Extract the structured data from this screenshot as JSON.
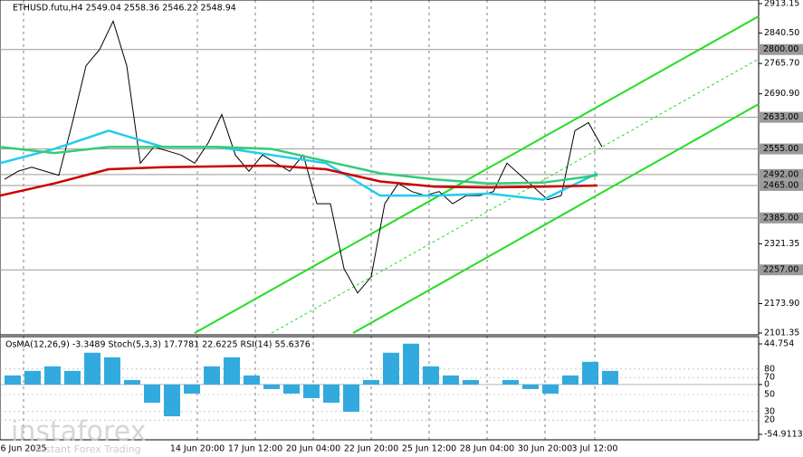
{
  "header": {
    "title": "ETHUSD.futu,H4  2549.04 2558.36 2546.22 2548.94"
  },
  "watermark": {
    "brand": "instaforex",
    "tagline": "Instant Forex Trading"
  },
  "chart_data": [
    {
      "type": "line",
      "x_labels": [
        "6 Jun 2025",
        "14 Jun 20:00",
        "17 Jun 12:00",
        "20 Jun 04:00",
        "22 Jun 20:00",
        "25 Jun 12:00",
        "28 Jun 04:00",
        "30 Jun 20:00",
        "3 Jul 12:00"
      ],
      "ylim": [
        2101.35,
        2913.15
      ],
      "yticks": [
        {
          "value": 2913.15,
          "label": "2913.15"
        },
        {
          "value": 2840.5,
          "label": "2840.50"
        },
        {
          "value": 2765.7,
          "label": "2765.70"
        },
        {
          "value": 2690.9,
          "label": "2690.90"
        },
        2321.35,
        {
          "value": 2173.9,
          "label": "2173.90"
        },
        2101.35
      ],
      "levels": [
        {
          "value": 2800,
          "label": "2800.00"
        },
        {
          "value": 2633,
          "label": "2633.00"
        },
        {
          "value": 2555,
          "label": "2555.00"
        },
        {
          "value": 2492,
          "label": "2492.00"
        },
        {
          "value": 2465,
          "label": "2465.00"
        },
        {
          "value": 2385,
          "label": "2385.00"
        },
        {
          "value": 2257,
          "label": "2257.00"
        }
      ],
      "series": [
        {
          "name": "close",
          "color": "#000000",
          "values": [
            2480,
            2500,
            2510,
            2500,
            2490,
            2620,
            2760,
            2800,
            2870,
            2760,
            2520,
            2560,
            2550,
            2540,
            2520,
            2570,
            2640,
            2540,
            2500,
            2540,
            2520,
            2500,
            2540,
            2420,
            2420,
            2260,
            2200,
            2240,
            2420,
            2470,
            2450,
            2440,
            2450,
            2420,
            2440,
            2440,
            2450,
            2520,
            2490,
            2460,
            2430,
            2440,
            2600,
            2620,
            2560
          ]
        },
        {
          "name": "ma-fast",
          "color": "#22ccee",
          "values": [
            2520,
            2555,
            2600,
            2560,
            2560,
            2540,
            2520,
            2440,
            2440,
            2445,
            2430,
            2495
          ]
        },
        {
          "name": "ma-mid",
          "color": "#33cc77",
          "values": [
            2560,
            2545,
            2560,
            2560,
            2560,
            2555,
            2525,
            2495,
            2480,
            2470,
            2472,
            2490
          ]
        },
        {
          "name": "ma-slow",
          "color": "#cc0000",
          "values": [
            2440,
            2470,
            2505,
            2510,
            2512,
            2514,
            2505,
            2475,
            2462,
            2460,
            2462,
            2465
          ]
        }
      ]
    },
    {
      "type": "bar",
      "title": "OsMA(12,26,9) -3.3489  Stoch(5,3,3) 17.7781 22.6225  RSI(14) 55.6376",
      "ylim": [
        -54.9113,
        44.754
      ],
      "yticks": [
        {
          "value": 44.754,
          "label": "44.754"
        },
        0,
        {
          "value": -54.9113,
          "label": "-54.9113"
        }
      ],
      "y2lim": [
        0,
        100
      ],
      "y2ticks": [
        20,
        30,
        50,
        70,
        80
      ],
      "color": "#33aadd",
      "values": [
        10,
        15,
        20,
        15,
        35,
        30,
        5,
        -20,
        -35,
        -10,
        20,
        30,
        10,
        -5,
        -10,
        -15,
        -20,
        -30,
        5,
        35,
        45,
        20,
        10,
        5,
        0,
        5,
        -5,
        -10,
        10,
        25,
        15
      ]
    }
  ]
}
